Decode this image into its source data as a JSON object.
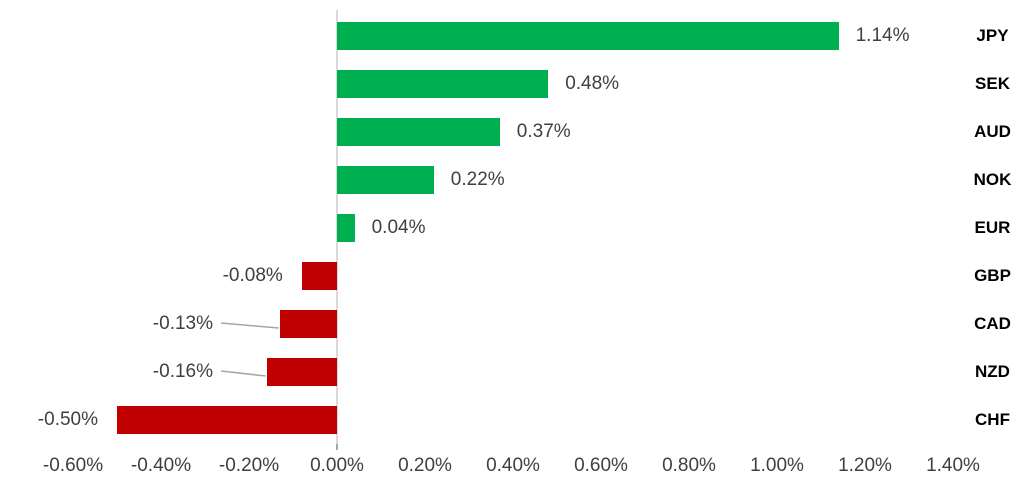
{
  "chart_data": {
    "type": "bar",
    "orientation": "horizontal",
    "title": "",
    "xlabel": "",
    "ylabel": "",
    "grid": false,
    "legend": null,
    "categories": [
      "JPY",
      "SEK",
      "AUD",
      "NOK",
      "EUR",
      "GBP",
      "CAD",
      "NZD",
      "CHF"
    ],
    "values": [
      1.14,
      0.48,
      0.37,
      0.22,
      0.04,
      -0.08,
      -0.13,
      -0.16,
      -0.5
    ],
    "value_labels": [
      "1.14%",
      "0.48%",
      "0.37%",
      "0.22%",
      "0.04%",
      "-0.08%",
      "-0.13%",
      "-0.16%",
      "-0.50%"
    ],
    "x_tick_values": [
      -0.6,
      -0.4,
      -0.2,
      0.0,
      0.2,
      0.4,
      0.6,
      0.8,
      1.0,
      1.2,
      1.4
    ],
    "x_tick_labels": [
      "-0.60%",
      "-0.40%",
      "-0.20%",
      "0.00%",
      "0.20%",
      "0.40%",
      "0.60%",
      "0.80%",
      "1.00%",
      "1.20%",
      "1.40%"
    ],
    "xlim": [
      -0.6,
      1.4
    ],
    "leader_label_indices": [
      6,
      7
    ],
    "colors": {
      "positive_bar": "#00B050",
      "negative_bar": "#C00000",
      "axis_line": "#D9D9D9",
      "axis_tick": "#A6A6A6",
      "value_label_text": "#404040",
      "x_tick_text": "#404040",
      "category_text": "#000000",
      "leader_line": "#A6A6A6",
      "background": "#FFFFFF"
    }
  }
}
